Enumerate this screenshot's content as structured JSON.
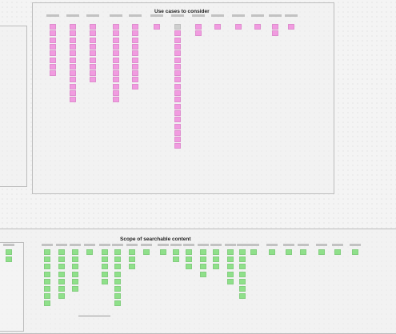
{
  "board": {
    "top_title": "Use cases to consider",
    "bottom_title": "Scope of searchable content"
  },
  "colors": {
    "pink_note": "#f19be0",
    "green_note": "#8fe08a",
    "frame_border": "#bdbdbd",
    "canvas_bg": "#f4f4f4"
  },
  "top_columns": [
    {
      "count": 8
    },
    {
      "count": 12
    },
    {
      "count": 9
    },
    {
      "count": 12
    },
    {
      "count": 10
    },
    {
      "count": 1
    },
    {
      "count": 19,
      "gray_first": true
    },
    {
      "count": 2
    },
    {
      "count": 1
    },
    {
      "count": 1
    },
    {
      "count": 1
    },
    {
      "count": 2
    },
    {
      "count": 1
    }
  ],
  "bottom_columns": [
    {
      "count": 2
    },
    {
      "count": 8
    },
    {
      "count": 7
    },
    {
      "count": 6
    },
    {
      "count": 1
    },
    {
      "count": 5
    },
    {
      "count": 8
    },
    {
      "count": 3
    },
    {
      "count": 1
    },
    {
      "count": 1
    },
    {
      "count": 2
    },
    {
      "count": 3
    },
    {
      "count": 4
    },
    {
      "count": 3
    },
    {
      "count": 5
    },
    {
      "count": 7
    },
    {
      "count": 1
    },
    {
      "count": 1
    },
    {
      "count": 1
    },
    {
      "count": 1
    },
    {
      "count": 1
    },
    {
      "count": 1
    },
    {
      "count": 1
    }
  ]
}
